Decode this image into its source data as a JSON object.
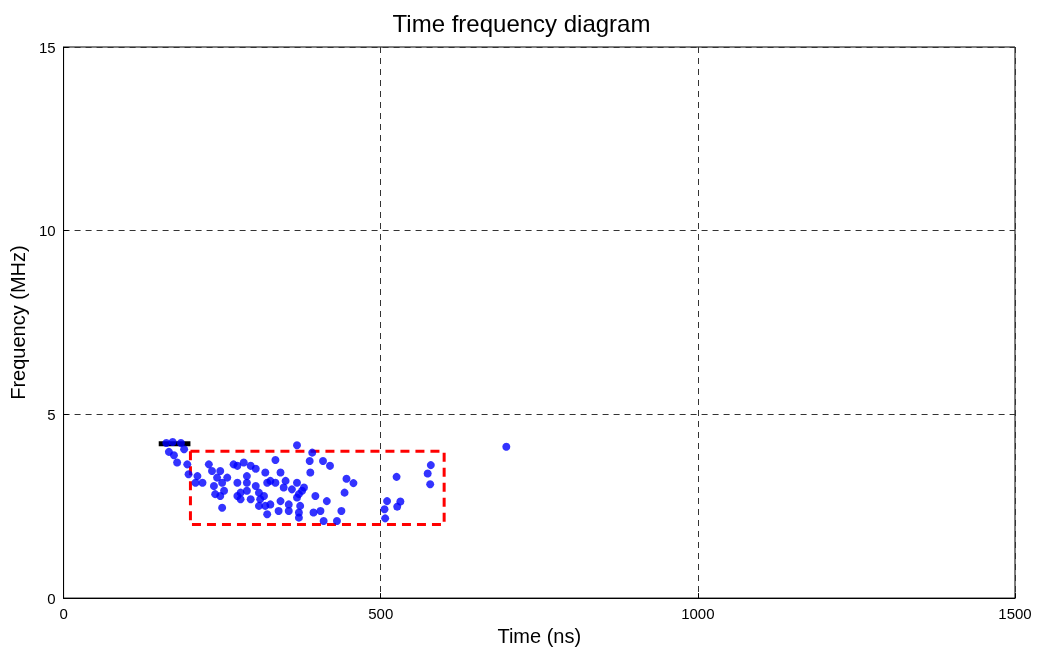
{
  "chart_data": {
    "type": "scatter",
    "title": "Time frequency diagram",
    "xlabel": "Time (ns)",
    "ylabel": "Frequency (MHz)",
    "xlim": [
      0,
      1500
    ],
    "xticks": [
      0,
      500,
      1000,
      1500
    ],
    "ylim": [
      0,
      15
    ],
    "yticks": [
      0,
      5,
      10,
      15
    ],
    "grid": true,
    "series": [
      {
        "color": "#0000ff",
        "marker": "circle",
        "x": [
          162,
          172,
          185,
          368,
          392,
          334,
          166,
          174,
          179,
          190,
          195,
          197,
          211,
          208,
          219,
          229,
          234,
          242,
          237,
          247,
          250,
          258,
          253,
          239,
          250,
          247,
          268,
          274,
          284,
          295,
          303,
          289,
          274,
          289,
          279,
          274,
          279,
          289,
          295,
          303,
          308,
          310,
          308,
          316,
          318,
          321,
          326,
          318,
          321,
          326,
          334,
          342,
          342,
          339,
          350,
          347,
          355,
          355,
          360,
          368,
          371,
          368,
          373,
          371,
          371,
          376,
          379,
          389,
          388,
          397,
          394,
          405,
          409,
          420,
          415,
          410,
          431,
          698,
          579,
          574,
          578,
          525,
          510,
          506,
          507,
          531,
          526,
          446,
          457,
          443,
          438
        ],
        "values": [
          4.22,
          4.25,
          4.22,
          4.16,
          3.96,
          3.76,
          3.98,
          3.89,
          3.69,
          4.05,
          3.64,
          3.37,
          3.32,
          3.14,
          3.14,
          3.64,
          3.46,
          3.28,
          3.05,
          3.46,
          3.14,
          3.28,
          2.92,
          2.83,
          2.46,
          2.78,
          3.64,
          3.6,
          3.69,
          3.6,
          3.52,
          3.32,
          3.14,
          3.14,
          2.87,
          2.78,
          2.69,
          2.92,
          2.69,
          3.05,
          2.87,
          2.69,
          2.51,
          2.78,
          3.42,
          3.14,
          3.19,
          2.51,
          2.28,
          2.55,
          3.14,
          3.42,
          2.64,
          2.37,
          3.19,
          3.01,
          2.55,
          2.37,
          2.96,
          3.14,
          2.83,
          2.74,
          2.51,
          2.33,
          2.19,
          2.92,
          3.01,
          3.42,
          3.73,
          2.78,
          2.33,
          2.37,
          3.73,
          3.6,
          2.64,
          2.1,
          2.1,
          4.12,
          3.62,
          3.39,
          3.1,
          3.3,
          2.64,
          2.42,
          2.17,
          2.63,
          2.49,
          3.25,
          3.13,
          2.87,
          2.37
        ]
      },
      {
        "type": "line",
        "color": "#000000",
        "marker": "none",
        "line_style": "solid",
        "x": [
          150,
          200
        ],
        "values": [
          4.2,
          4.2
        ]
      },
      {
        "type": "line",
        "color": "#ff0000",
        "marker": "none",
        "line_style": "dashed",
        "x": [
          200,
          200,
          600,
          600
        ],
        "values": [
          4,
          2,
          2,
          4
        ]
      },
      {
        "type": "line",
        "color": "#ff0000",
        "marker": "none",
        "line_style": "dashed",
        "x": [
          200,
          600
        ],
        "values": [
          4,
          4
        ]
      }
    ]
  }
}
